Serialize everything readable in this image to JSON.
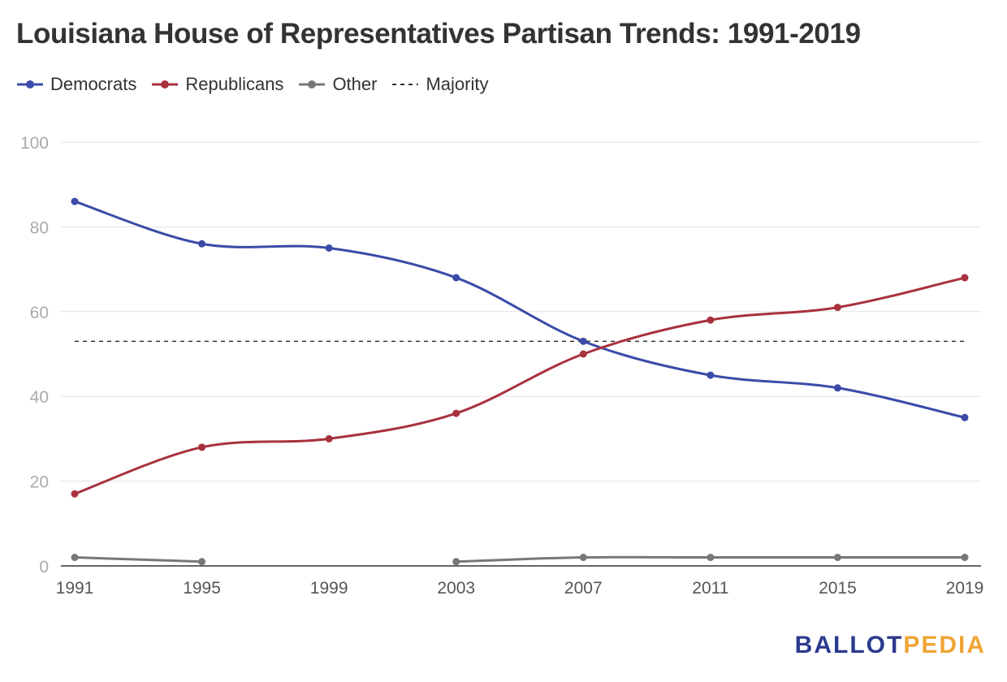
{
  "chart_data": {
    "type": "line",
    "title": "Louisiana House of Representatives Partisan Trends: 1991-2019",
    "x": [
      "1991",
      "1995",
      "1999",
      "2003",
      "2007",
      "2011",
      "2015",
      "2019"
    ],
    "ylim": [
      0,
      100
    ],
    "yticks": [
      0,
      20,
      40,
      60,
      80,
      100
    ],
    "grid": true,
    "legend_position": "top-left",
    "series": [
      {
        "name": "Democrats",
        "color": "#3a4ba8",
        "values": [
          86,
          76,
          75,
          68,
          53,
          45,
          42,
          35
        ]
      },
      {
        "name": "Republicans",
        "color": "#a8313e",
        "values": [
          17,
          28,
          30,
          36,
          50,
          58,
          61,
          68
        ]
      },
      {
        "name": "Other",
        "color": "#777777",
        "values": [
          2,
          1,
          null,
          1,
          2,
          2,
          2,
          2
        ]
      }
    ],
    "reference_line": {
      "name": "Majority",
      "value": 53,
      "color": "#333333",
      "style": "dashed"
    }
  },
  "branding": {
    "part1": "BALLOT",
    "part2": "PEDIA"
  }
}
